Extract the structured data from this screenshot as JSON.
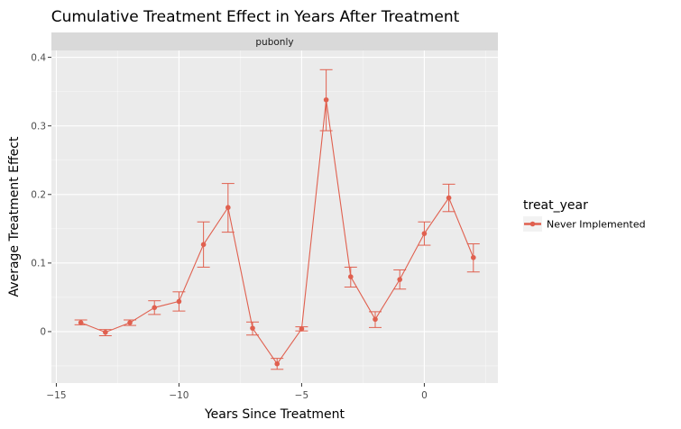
{
  "chart_data": {
    "type": "line",
    "title": "Cumulative Treatment Effect in Years After Treatment",
    "xlabel": "Years Since Treatment",
    "ylabel": "Average Treatment Effect",
    "facet": "pubonly",
    "xlim": [
      -15.2,
      3.0
    ],
    "ylim": [
      -0.075,
      0.41
    ],
    "xticks": [
      -15,
      -10,
      -5,
      0
    ],
    "xtick_labels": [
      "−15",
      "−10",
      "−5",
      "0"
    ],
    "yticks": [
      0,
      0.1,
      0.2,
      0.3,
      0.4
    ],
    "ytick_labels": [
      "0",
      "0.1",
      "0.2",
      "0.3",
      "0.4"
    ],
    "grid": true,
    "legend": {
      "title": "treat_year",
      "position": "right"
    },
    "series": [
      {
        "name": "Never Implemented",
        "color": "#e0604f",
        "x": [
          -14,
          -13,
          -12,
          -11,
          -10,
          -9,
          -8,
          -7,
          -6,
          -5,
          -4,
          -3,
          -2,
          -1,
          0,
          1,
          2
        ],
        "y": [
          0.013,
          -0.001,
          0.013,
          0.035,
          0.044,
          0.127,
          0.181,
          0.005,
          -0.047,
          0.004,
          0.338,
          0.08,
          0.018,
          0.076,
          0.143,
          0.195,
          0.108
        ],
        "ymin": [
          0.01,
          -0.006,
          0.009,
          0.025,
          0.03,
          0.094,
          0.145,
          -0.005,
          -0.055,
          0.001,
          0.293,
          0.065,
          0.006,
          0.062,
          0.126,
          0.175,
          0.087
        ],
        "ymax": [
          0.017,
          0.003,
          0.017,
          0.045,
          0.058,
          0.16,
          0.216,
          0.014,
          -0.039,
          0.007,
          0.382,
          0.094,
          0.029,
          0.09,
          0.16,
          0.215,
          0.128
        ]
      }
    ]
  },
  "colors": {
    "panel_bg": "#ebebeb",
    "grid_major": "#ffffff",
    "strip_bg": "#d9d9d9"
  }
}
